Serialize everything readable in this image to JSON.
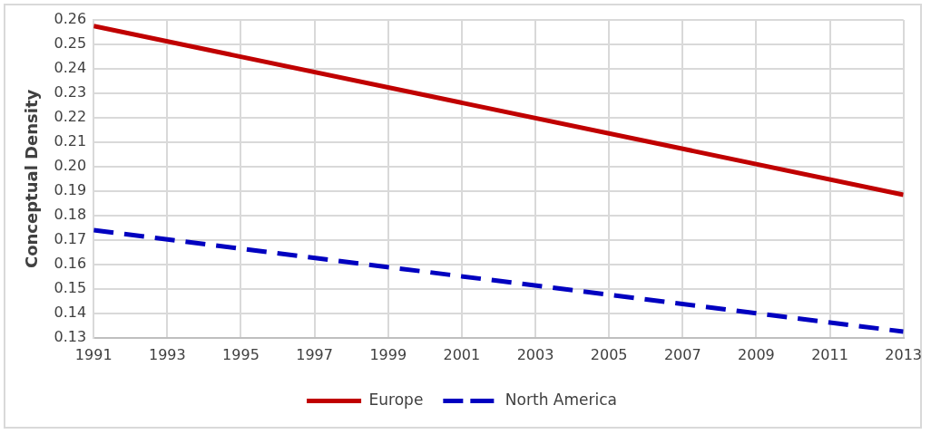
{
  "chart_data": {
    "type": "line",
    "ylabel": "Conceptual Density",
    "xlim": [
      1991,
      2013
    ],
    "xticks": [
      1991,
      1993,
      1995,
      1997,
      1999,
      2001,
      2003,
      2005,
      2007,
      2009,
      2011,
      2013
    ],
    "ylim": [
      0.13,
      0.26
    ],
    "yticks": [
      {
        "value": 0.13,
        "label": "0.13"
      },
      {
        "value": 0.14,
        "label": "0.14"
      },
      {
        "value": 0.15,
        "label": "0.15"
      },
      {
        "value": 0.16,
        "label": "0.16"
      },
      {
        "value": 0.17,
        "label": "0.17"
      },
      {
        "value": 0.18,
        "label": "0.18"
      },
      {
        "value": 0.19,
        "label": "0.19"
      },
      {
        "value": 0.2,
        "label": "0.20"
      },
      {
        "value": 0.21,
        "label": "0.21"
      },
      {
        "value": 0.22,
        "label": "0.22"
      },
      {
        "value": 0.23,
        "label": "0.23"
      },
      {
        "value": 0.24,
        "label": "0.24"
      },
      {
        "value": 0.25,
        "label": "0.25"
      },
      {
        "value": 0.26,
        "label": "0.26"
      }
    ],
    "x": [
      1991,
      2013
    ],
    "series": [
      {
        "name": "Europe",
        "color": "#c00000",
        "values": [
          0.2575,
          0.1885
        ],
        "line_style": "solid"
      },
      {
        "name": "North America",
        "color": "#0000c0",
        "values": [
          0.174,
          0.1325
        ],
        "line_style": "dashed"
      }
    ],
    "grid": true,
    "legend": "bottom",
    "marker": "none"
  }
}
